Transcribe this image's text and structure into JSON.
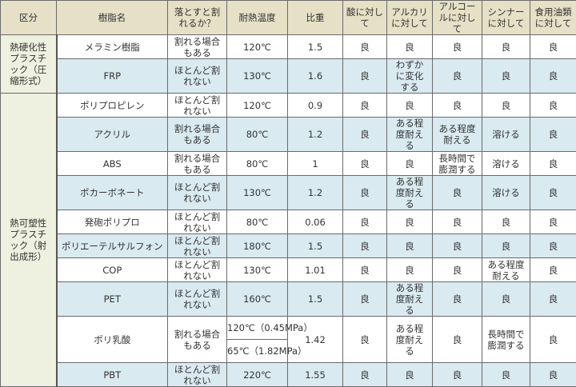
{
  "colors": {
    "header": "#e6e0c6",
    "category": "#eef0e0",
    "stripe": "#d9eaf0"
  },
  "headers": [
    "区分",
    "樹脂名",
    "落とすと割れるか？",
    "耐熱温度",
    "比重",
    "酸に対して",
    "アルカリに対して",
    "アルコールに対して",
    "シンナーに対して",
    "食用油類に対して"
  ],
  "categories": [
    "熱硬化性プラスチック（圧縮形式）",
    "熱可塑性プラスチック（射出成形）"
  ],
  "rows": [
    [
      "メラミン樹脂",
      "割れる場合もある",
      "120℃",
      "1.5",
      "良",
      "良",
      "良",
      "良",
      "良"
    ],
    [
      "FRP",
      "ほとんど割れない",
      "130℃",
      "1.6",
      "良",
      "わずかに変化する",
      "良",
      "良",
      "良"
    ],
    [
      "ポリプロピレン",
      "ほとんど割れない",
      "120℃",
      "0.9",
      "良",
      "良",
      "良",
      "良",
      "良"
    ],
    [
      "アクリル",
      "割れる場合もある",
      "80℃",
      "1.2",
      "良",
      "ある程度耐える",
      "ある程度耐える",
      "溶ける",
      "良"
    ],
    [
      "ABS",
      "割れる場合もある",
      "80℃",
      "1",
      "良",
      "良",
      "長時間で膨潤する",
      "溶ける",
      "良"
    ],
    [
      "ポカーボネート",
      "ほとんど割れない",
      "130℃",
      "1.2",
      "良",
      "ある程度耐える",
      "良",
      "溶ける",
      "良"
    ],
    [
      "発砲ポリプロ",
      "ほとんど割れない",
      "80℃",
      "0.06",
      "良",
      "良",
      "良",
      "良",
      "良"
    ],
    [
      "ポリエーテルサルフォン",
      "ほとんど割れない",
      "180℃",
      "1.5",
      "良",
      "良",
      "良",
      "良",
      "良"
    ],
    [
      "COP",
      "ほとんど割れない",
      "130℃",
      "1.01",
      "良",
      "良",
      "良",
      "ある程度耐える",
      "良"
    ],
    [
      "PET",
      "ほとんど割れない",
      "160℃",
      "1.5",
      "良",
      "ある程度耐える",
      "良",
      "良",
      "良"
    ],
    [
      "ポリ乳酸",
      "割れる場合もある",
      "120℃（0.45MPa）",
      "1.42",
      "良",
      "ある程度耐える",
      "良",
      "長時間で膨潤する",
      "良"
    ],
    [
      "PBT",
      "ほとんど割れない",
      "220℃",
      "1.55",
      "良",
      "良",
      "良",
      "良",
      "良"
    ]
  ],
  "pla_heat_2": "65℃（1.82MPa）"
}
